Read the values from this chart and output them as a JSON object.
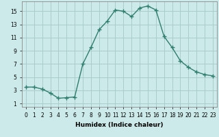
{
  "x": [
    0,
    1,
    2,
    3,
    4,
    5,
    6,
    7,
    8,
    9,
    10,
    11,
    12,
    13,
    14,
    15,
    16,
    17,
    18,
    19,
    20,
    21,
    22,
    23
  ],
  "y": [
    3.5,
    3.5,
    3.2,
    2.6,
    1.8,
    1.9,
    2.0,
    7.0,
    9.5,
    12.2,
    13.5,
    15.2,
    15.0,
    14.2,
    15.5,
    15.8,
    15.2,
    11.2,
    9.5,
    7.5,
    6.5,
    5.8,
    5.4,
    5.2
  ],
  "line_color": "#2e7d6e",
  "marker": "+",
  "marker_size": 4,
  "marker_lw": 1.0,
  "line_width": 1.0,
  "bg_color": "#cceaea",
  "grid_color": "#aacccc",
  "xlabel": "Humidex (Indice chaleur)",
  "xlim": [
    -0.5,
    23.5
  ],
  "ylim": [
    0.5,
    16.5
  ],
  "yticks": [
    1,
    3,
    5,
    7,
    9,
    11,
    13,
    15
  ],
  "xticks": [
    0,
    1,
    2,
    3,
    4,
    5,
    6,
    7,
    8,
    9,
    10,
    11,
    12,
    13,
    14,
    15,
    16,
    17,
    18,
    19,
    20,
    21,
    22,
    23
  ],
  "xlabel_fontsize": 6.5,
  "tick_fontsize": 5.5,
  "xlabel_fontweight": "bold"
}
